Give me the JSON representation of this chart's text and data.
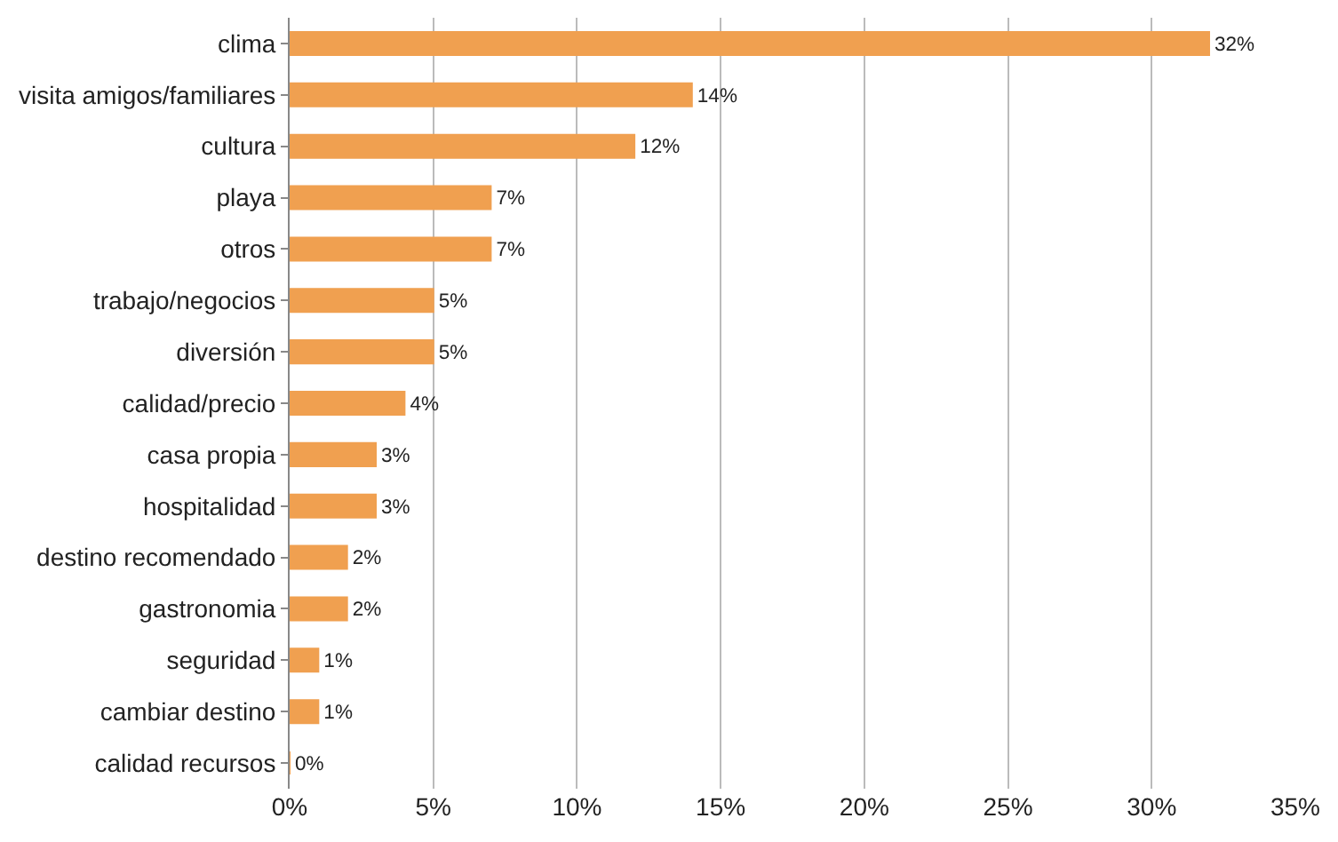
{
  "chart_data": {
    "type": "bar",
    "orientation": "horizontal",
    "categories": [
      "clima",
      "visita amigos/familiares",
      "cultura",
      "playa",
      "otros",
      "trabajo/negocios",
      "diversión",
      "calidad/precio",
      "casa propia",
      "hospitalidad",
      "destino recomendado",
      "gastronomia",
      "seguridad",
      "cambiar destino",
      "calidad recursos"
    ],
    "values": [
      32,
      14,
      12,
      7,
      7,
      5,
      5,
      4,
      3,
      3,
      2,
      2,
      1,
      1,
      0
    ],
    "value_labels": [
      "32%",
      "14%",
      "12%",
      "7%",
      "7%",
      "5%",
      "5%",
      "4%",
      "3%",
      "3%",
      "2%",
      "2%",
      "1%",
      "1%",
      "0%"
    ],
    "color": "#f0a050",
    "xlim": [
      0,
      35
    ],
    "xticks": [
      {
        "value": 0,
        "label": "0%"
      },
      {
        "value": 5,
        "label": "5%"
      },
      {
        "value": 10,
        "label": "10%"
      },
      {
        "value": 15,
        "label": "15%"
      },
      {
        "value": 20,
        "label": "20%"
      },
      {
        "value": 25,
        "label": "25%"
      },
      {
        "value": 30,
        "label": "30%"
      },
      {
        "value": 35,
        "label": "35%"
      }
    ],
    "grid": "x",
    "legend": false
  }
}
